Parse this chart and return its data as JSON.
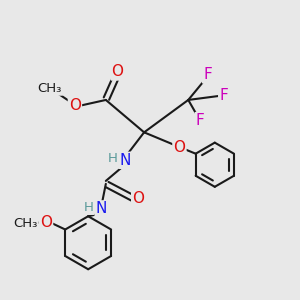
{
  "bg_color": "#e8e8e8",
  "bond_color": "#1a1a1a",
  "bond_width": 1.5,
  "atom_colors": {
    "C": "#1a1a1a",
    "H": "#5a9a9a",
    "N": "#1a1aee",
    "O": "#dd1111",
    "F": "#cc00bb"
  },
  "font_size": 11,
  "font_size_h": 9.5
}
